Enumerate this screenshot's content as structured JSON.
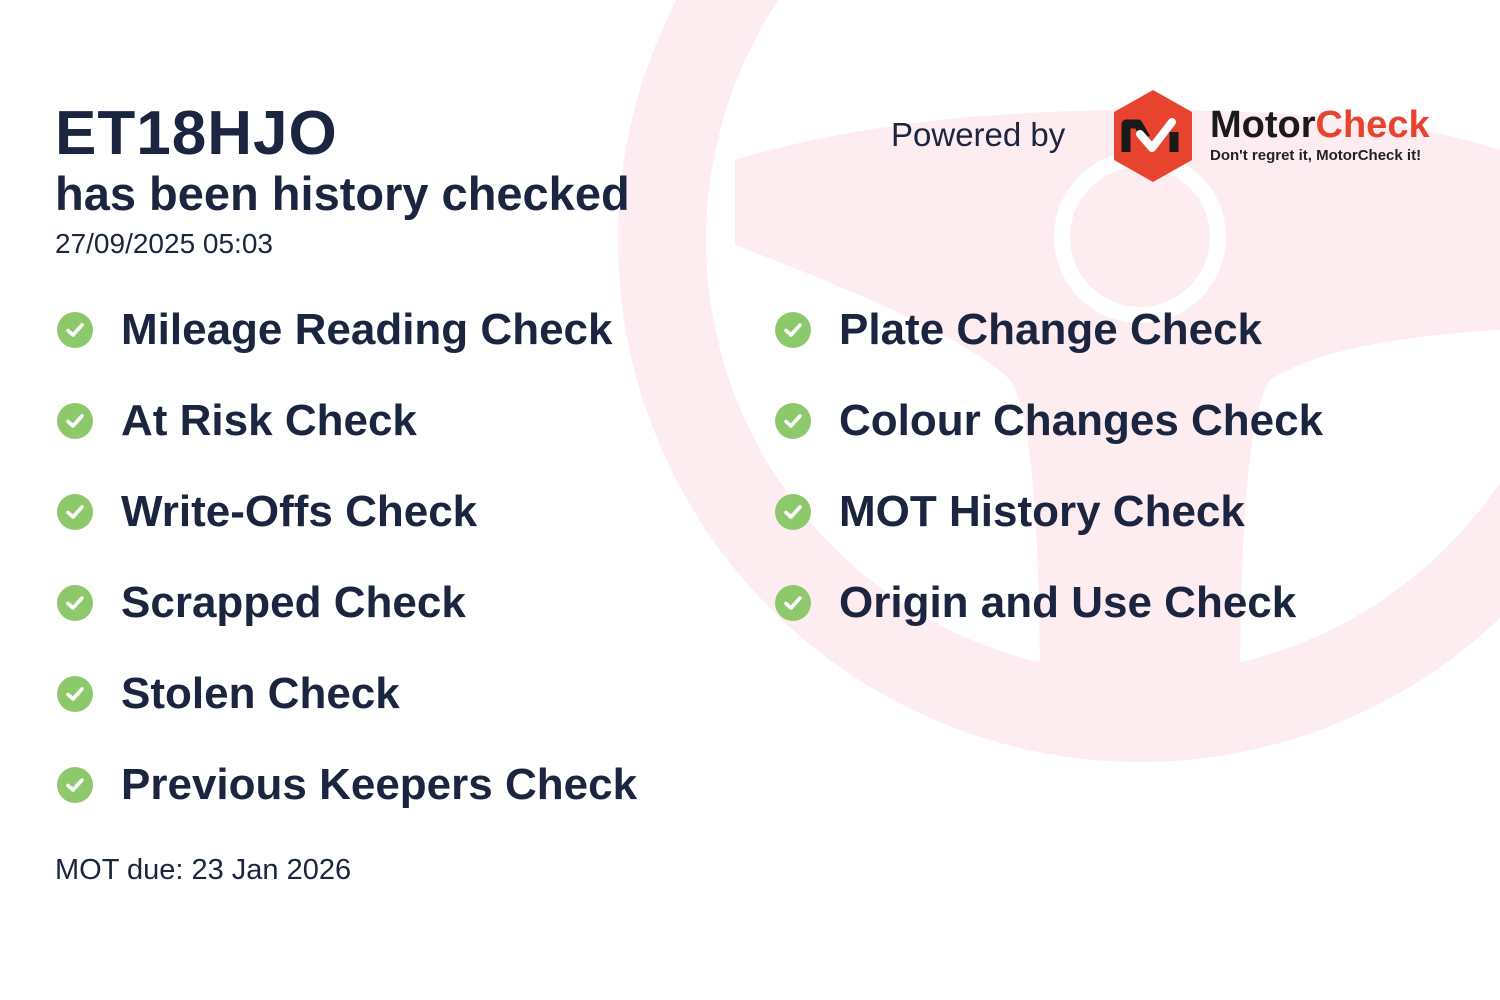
{
  "header": {
    "plate": "ET18HJO",
    "subtitle": "has been history checked",
    "datetime": "27/09/2025 05:03"
  },
  "branding": {
    "powered_by": "Powered by",
    "brand_part1": "Motor",
    "brand_part2": "Check",
    "tagline": "Don't regret it, MotorCheck it!",
    "brand_color": "#e8432e"
  },
  "checks_left": [
    {
      "label": "Mileage Reading Check",
      "icon": "check-circle-icon"
    },
    {
      "label": "At Risk Check",
      "icon": "check-circle-icon"
    },
    {
      "label": "Write-Offs Check",
      "icon": "check-circle-icon"
    },
    {
      "label": "Scrapped Check",
      "icon": "check-circle-icon"
    },
    {
      "label": "Stolen Check",
      "icon": "check-circle-icon"
    },
    {
      "label": "Previous Keepers Check",
      "icon": "check-circle-icon"
    }
  ],
  "checks_right": [
    {
      "label": "Plate Change Check",
      "icon": "check-circle-icon"
    },
    {
      "label": "Colour Changes Check",
      "icon": "check-circle-icon"
    },
    {
      "label": "MOT History Check",
      "icon": "check-circle-icon"
    },
    {
      "label": "Origin and Use Check",
      "icon": "check-circle-icon"
    }
  ],
  "footer": {
    "mot_due": "MOT due: 23 Jan 2026"
  },
  "colors": {
    "text": "#1b2540",
    "check": "#8dc96b",
    "watermark": "#fdecf0"
  }
}
